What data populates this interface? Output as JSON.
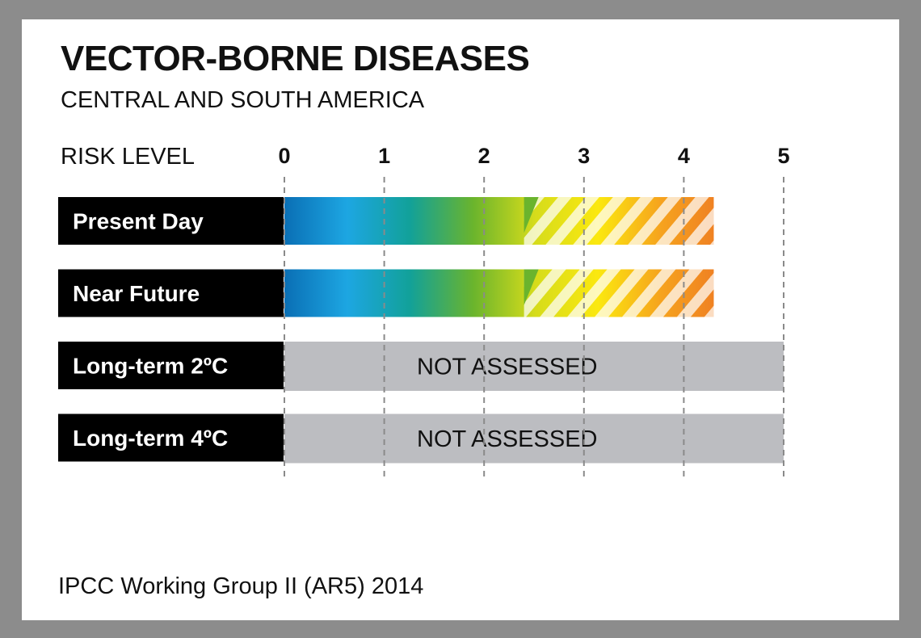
{
  "header": {
    "title": "VECTOR-BORNE DISEASES",
    "subtitle": "CENTRAL AND SOUTH AMERICA"
  },
  "axis_label": "RISK LEVEL",
  "footer": {
    "source": "IPCC Working Group II (AR5) 2014"
  },
  "colors": {
    "page_bg": "#8c8c8c",
    "card_bg": "#ffffff",
    "label_bg": "#000000",
    "not_assessed": "#bcbdc1",
    "gradient": [
      "#0a6fb5",
      "#1da6e2",
      "#12a199",
      "#6ab42d",
      "#d6dc1b",
      "#fbe80f",
      "#f6a31e",
      "#ee7b23"
    ]
  },
  "chart_data": {
    "type": "bar",
    "orientation": "horizontal",
    "xlim": [
      0,
      5
    ],
    "ticks": [
      "0",
      "1",
      "2",
      "3",
      "4",
      "5"
    ],
    "grid": true,
    "rows": [
      {
        "label": "Present Day",
        "assessed": true,
        "value": 4.3,
        "range": [
          2.4,
          4.3
        ]
      },
      {
        "label": "Near Future",
        "assessed": true,
        "value": 4.3,
        "range": [
          2.4,
          4.3
        ]
      },
      {
        "label": "Long-term 2ºC",
        "assessed": false,
        "status": "NOT ASSESSED"
      },
      {
        "label": "Long-term 4ºC",
        "assessed": false,
        "status": "NOT ASSESSED"
      }
    ]
  }
}
